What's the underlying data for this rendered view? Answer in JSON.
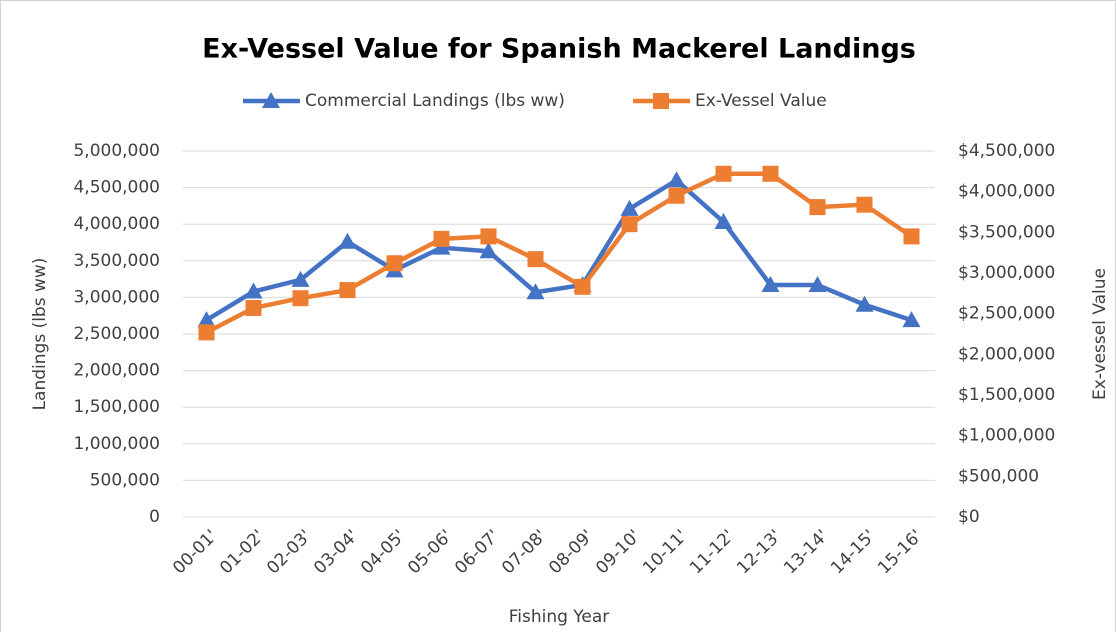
{
  "chart_data": {
    "type": "line",
    "title": "Ex-Vessel Value for Spanish Mackerel Landings",
    "x_label": "Fishing Year",
    "y_label": "Landings (lbs ww)",
    "y2_label": "Ex-vessel Value",
    "categories": [
      "00-01'",
      "01-02'",
      "02-03'",
      "03-04'",
      "04-05'",
      "05-06'",
      "06-07'",
      "07-08'",
      "08-09'",
      "09-10'",
      "10-11'",
      "11-12'",
      "12-13'",
      "13-14'",
      "14-15'",
      "15-16'"
    ],
    "series": [
      {
        "name": "Commercial Landings (lbs ww)",
        "color": "#4472c4",
        "marker": "triangle",
        "values": [
          2690000,
          3080000,
          3240000,
          3760000,
          3370000,
          3680000,
          3630000,
          3070000,
          3170000,
          4210000,
          4600000,
          4030000,
          3170000,
          3170000,
          2900000,
          2690000
        ]
      },
      {
        "name": "Ex-Vessel Value",
        "color": "#ed7d31",
        "marker": "square",
        "axis": "y2",
        "values": [
          2270000,
          2570000,
          2690000,
          2790000,
          3120000,
          3420000,
          3450000,
          3170000,
          2830000,
          3600000,
          3950000,
          4220000,
          4220000,
          3810000,
          3840000,
          3450000
        ]
      }
    ],
    "ylim": [
      0,
      5000000
    ],
    "yticks": [
      0,
      {
        "value": 500000,
        "label": "500,000"
      },
      {
        "value": 1000000,
        "label": "1,000,000"
      },
      {
        "value": 1500000,
        "label": "1,500,000"
      },
      {
        "value": 2000000,
        "label": "2,000,000"
      },
      {
        "value": 2500000,
        "label": "2,500,000"
      },
      {
        "value": 3000000,
        "label": "3,000,000"
      },
      {
        "value": 3500000,
        "label": "3,500,000"
      },
      {
        "value": 4000000,
        "label": "4,000,000"
      },
      {
        "value": 4500000,
        "label": "4,500,000"
      },
      {
        "value": 5000000,
        "label": "5,000,000"
      }
    ],
    "y2lim": [
      0,
      4500000
    ],
    "y2ticks": [
      {
        "value": 0,
        "label": "$0"
      },
      {
        "value": 500000,
        "label": "$500,000"
      },
      {
        "value": 1000000,
        "label": "$1,000,000"
      },
      {
        "value": 1500000,
        "label": "$1,500,000"
      },
      {
        "value": 2000000,
        "label": "$2,000,000"
      },
      {
        "value": 2500000,
        "label": "$2,500,000"
      },
      {
        "value": 3000000,
        "label": "$3,000,000"
      },
      {
        "value": 3500000,
        "label": "$3,500,000"
      },
      {
        "value": 4000000,
        "label": "$4,000,000"
      },
      {
        "value": 4500000,
        "label": "$4,500,000"
      }
    ],
    "grid": true
  }
}
